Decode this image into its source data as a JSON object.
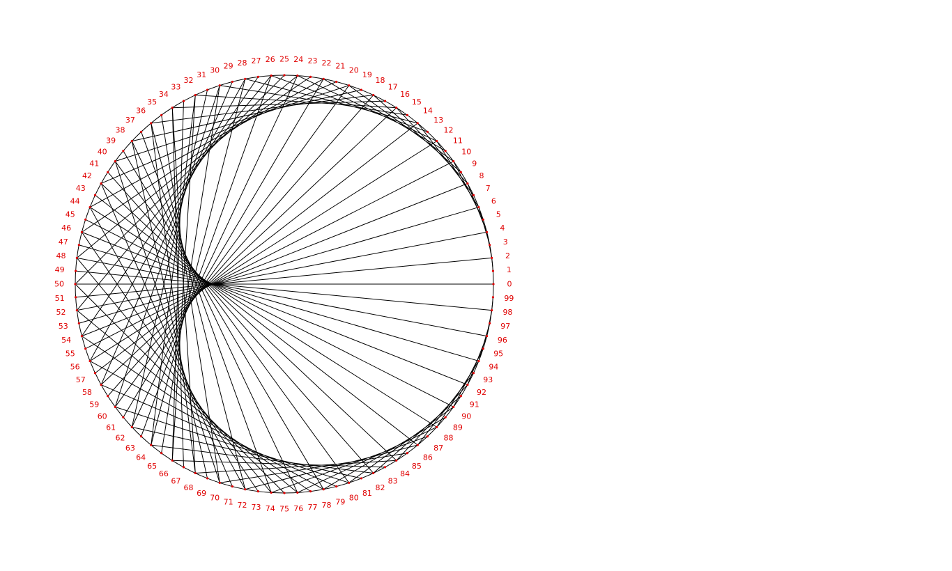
{
  "diagram": {
    "type": "modular-multiplication-circle",
    "point_count": 100,
    "multiplier": 2,
    "labels": [
      "0",
      "1",
      "2",
      "3",
      "4",
      "5",
      "6",
      "7",
      "8",
      "9",
      "10",
      "11",
      "12",
      "13",
      "14",
      "15",
      "16",
      "17",
      "18",
      "19",
      "20",
      "21",
      "22",
      "23",
      "24",
      "25",
      "26",
      "27",
      "28",
      "29",
      "30",
      "31",
      "32",
      "33",
      "34",
      "35",
      "36",
      "37",
      "38",
      "39",
      "40",
      "41",
      "42",
      "43",
      "44",
      "45",
      "46",
      "47",
      "48",
      "49",
      "50",
      "51",
      "52",
      "53",
      "54",
      "55",
      "56",
      "57",
      "58",
      "59",
      "60",
      "61",
      "62",
      "63",
      "64",
      "65",
      "66",
      "67",
      "68",
      "69",
      "70",
      "71",
      "72",
      "73",
      "74",
      "75",
      "76",
      "77",
      "78",
      "79",
      "80",
      "81",
      "82",
      "83",
      "84",
      "85",
      "86",
      "87",
      "88",
      "89",
      "90",
      "91",
      "92",
      "93",
      "94",
      "95",
      "96",
      "97",
      "98",
      "99"
    ],
    "colors": {
      "line": "#000000",
      "point": "#e00000",
      "label": "#e00000",
      "background": "#ffffff"
    }
  }
}
